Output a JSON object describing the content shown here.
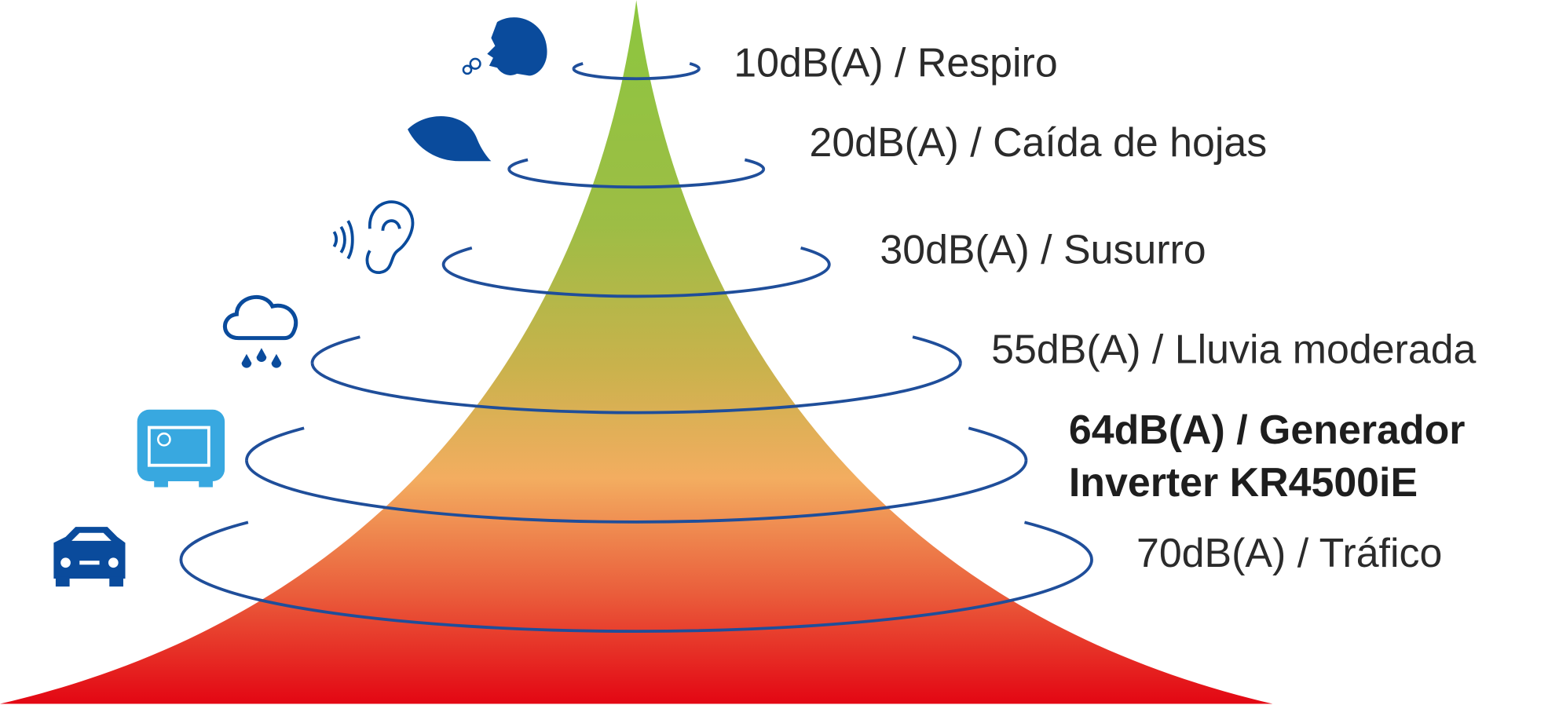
{
  "levels": [
    {
      "label": "10dB(A) / Respiro"
    },
    {
      "label": "20dB(A) / Caída de hojas"
    },
    {
      "label": "30dB(A) / Susurro"
    },
    {
      "label": "55dB(A) / Lluvia moderada"
    },
    {
      "lines": [
        "64dB(A) / Generador",
        "Inverter KR4500iE"
      ]
    },
    {
      "label": "70dB(A) / Tráfico"
    }
  ]
}
